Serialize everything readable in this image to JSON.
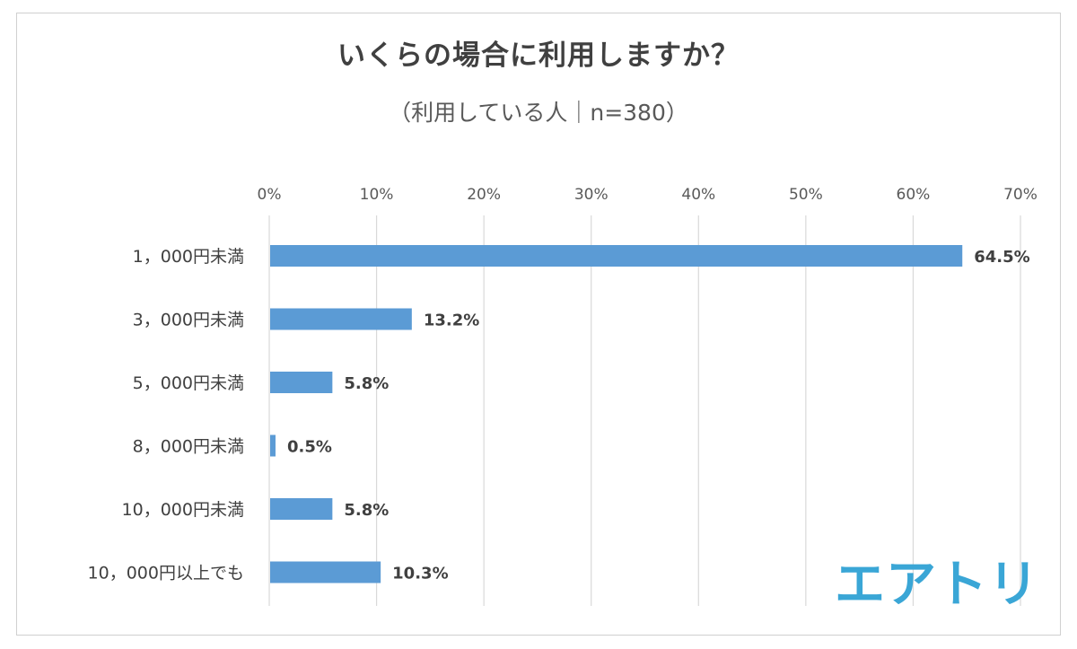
{
  "chart_data": {
    "type": "bar",
    "orientation": "horizontal",
    "title": "いくらの場合に利用しますか？",
    "subtitle": "（利用している人｜n=380）",
    "categories": [
      "1，000円未満",
      "3，000円未満",
      "5，000円未満",
      "8，000円未満",
      "10，000円未満",
      "10，000円以上でも"
    ],
    "values": [
      64.5,
      13.2,
      5.8,
      0.5,
      5.8,
      10.3
    ],
    "data_labels": [
      "64.5%",
      "13.2%",
      "5.8%",
      "0.5%",
      "5.8%",
      "10.3%"
    ],
    "xlim": [
      0,
      70
    ],
    "x_ticks": [
      "0%",
      "10%",
      "20%",
      "30%",
      "40%",
      "50%",
      "60%",
      "70%"
    ],
    "axis_position": "top",
    "grid": true,
    "bar_color": "#5b9bd5"
  },
  "brand": {
    "logo_text": "エアトリ",
    "color": "#3aa6d6"
  }
}
